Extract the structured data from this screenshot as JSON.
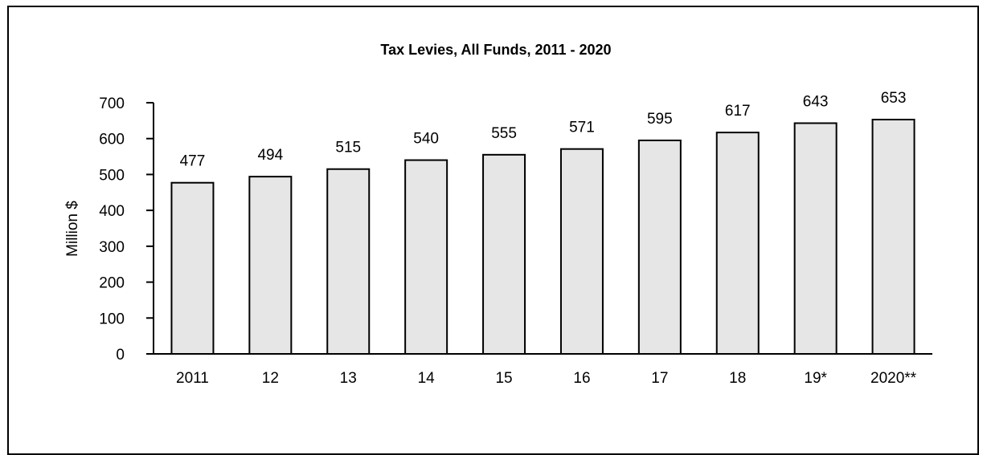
{
  "chart_data": {
    "type": "bar",
    "title": "Tax Levies, All Funds, 2011 - 2020",
    "xlabel": "",
    "ylabel": "Million $",
    "ylim": [
      0,
      700
    ],
    "yticks": [
      0,
      100,
      200,
      300,
      400,
      500,
      600,
      700
    ],
    "categories": [
      "2011",
      "12",
      "13",
      "14",
      "15",
      "16",
      "17",
      "18",
      "19*",
      "2020**"
    ],
    "values": [
      477,
      494,
      515,
      540,
      555,
      571,
      595,
      617,
      643,
      653
    ],
    "data_labels": [
      "477",
      "494",
      "515",
      "540",
      "555",
      "571",
      "595",
      "617",
      "643",
      "653"
    ],
    "bar_color": "#e6e6e6",
    "bar_edge_color": "#000000",
    "grid": false,
    "legend": "none"
  }
}
